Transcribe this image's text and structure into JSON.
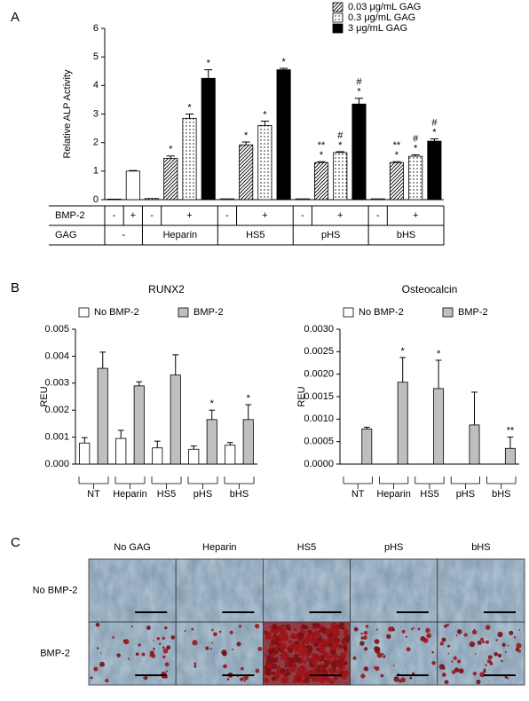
{
  "chart_data": [
    {
      "type": "bar",
      "panel": "A",
      "ylabel": "Relative ALP Activity",
      "ylim": [
        0,
        6
      ],
      "yticks": [
        0,
        1,
        2,
        3,
        4,
        5,
        6
      ],
      "legend": "upper right",
      "row_labels": [
        "BMP-2",
        "GAG"
      ],
      "categories": [
        "-",
        "+",
        "-",
        "+",
        "-",
        "+",
        "-",
        "+",
        "-",
        "+"
      ],
      "groups": [
        "-",
        "Heparin",
        "HS5",
        "pHS",
        "bHS"
      ],
      "series": [
        {
          "color": "#ffffff",
          "values": [
            0.02,
            1.0,
            null,
            null,
            null,
            null,
            null,
            null,
            null,
            null
          ],
          "errors": [
            null,
            0.02,
            null,
            null,
            null,
            null,
            null,
            null,
            null,
            null
          ]
        },
        {
          "name": "0.03 μg/mL GAG",
          "pattern": "hatch",
          "color": "#000000",
          "values": [
            null,
            null,
            0.04,
            1.45,
            0.03,
            1.92,
            0.03,
            1.3,
            0.03,
            1.3
          ],
          "errors": [
            null,
            null,
            null,
            0.08,
            null,
            0.1,
            null,
            0.03,
            null,
            0.03
          ],
          "significance": [
            null,
            null,
            null,
            [
              "*"
            ],
            null,
            [
              "*"
            ],
            null,
            [
              "**",
              "*"
            ],
            null,
            [
              "**",
              "*"
            ]
          ]
        },
        {
          "name": "0.3 μg/mL GAG",
          "pattern": "dots",
          "color": "#000000",
          "values": [
            null,
            null,
            null,
            2.85,
            null,
            2.6,
            null,
            1.65,
            null,
            1.52
          ],
          "errors": [
            null,
            null,
            null,
            0.15,
            null,
            0.15,
            null,
            0.03,
            null,
            0.05
          ],
          "significance": [
            null,
            null,
            null,
            [
              "*"
            ],
            null,
            [
              "*"
            ],
            null,
            [
              "#",
              "*"
            ],
            null,
            [
              "#",
              "*"
            ]
          ]
        },
        {
          "name": "3 μg/mL GAG",
          "color": "#000000",
          "values": [
            null,
            null,
            null,
            4.25,
            null,
            4.55,
            null,
            3.35,
            null,
            2.05
          ],
          "errors": [
            null,
            null,
            null,
            0.3,
            null,
            0.05,
            null,
            0.2,
            null,
            0.08
          ],
          "significance": [
            null,
            null,
            null,
            [
              "*"
            ],
            null,
            [
              "*"
            ],
            null,
            [
              "#",
              "*"
            ],
            null,
            [
              "#",
              "*"
            ]
          ]
        }
      ]
    },
    {
      "type": "bar",
      "panel": "B",
      "title": "RUNX2",
      "ylabel": "REU",
      "ylim": [
        0,
        0.005
      ],
      "yticks": [
        {
          "value": 0,
          "label": "0.000"
        },
        0.001,
        0.002,
        0.003,
        0.004,
        0.005
      ],
      "legend": "upper left",
      "categories": [
        "NT",
        "Heparin",
        "HS5",
        "pHS",
        "bHS"
      ],
      "series": [
        {
          "name": "No BMP-2",
          "color": "#ffffff",
          "values": [
            0.00078,
            0.00095,
            0.0006,
            0.00055,
            0.0007
          ],
          "errors": [
            0.0002,
            0.0003,
            0.00025,
            0.00012,
            0.0001
          ]
        },
        {
          "name": "BMP-2",
          "color": "#bfbfbf",
          "values": [
            0.00355,
            0.0029,
            0.0033,
            0.00165,
            0.00165
          ],
          "errors": [
            0.0006,
            0.00015,
            0.00075,
            0.00035,
            0.00055
          ],
          "significance": [
            null,
            null,
            null,
            [
              "*"
            ],
            [
              "*"
            ]
          ]
        }
      ]
    },
    {
      "type": "bar",
      "title": "Osteocalcin",
      "ylabel": "REU",
      "ylim": [
        0,
        0.003
      ],
      "yticks": [
        {
          "value": 0,
          "label": "0.0000"
        },
        0.0005,
        {
          "value": 0.001,
          "label": "0.0010"
        },
        0.0015,
        {
          "value": 0.002,
          "label": "0.0020"
        },
        0.0025,
        {
          "value": 0.003,
          "label": "0.0030"
        }
      ],
      "legend": "upper left",
      "categories": [
        "NT",
        "Heparin",
        "HS5",
        "pHS",
        "bHS"
      ],
      "series": [
        {
          "name": "No BMP-2",
          "color": "#ffffff",
          "values": [
            0,
            0,
            0,
            0,
            0
          ]
        },
        {
          "name": "BMP-2",
          "color": "#bfbfbf",
          "values": [
            0.00078,
            0.00182,
            0.00168,
            0.00087,
            0.00035
          ],
          "errors": [
            4e-05,
            0.00055,
            0.00063,
            0.00073,
            0.00025
          ],
          "significance": [
            null,
            [
              "*"
            ],
            [
              "*"
            ],
            null,
            [
              "**"
            ]
          ]
        }
      ]
    }
  ],
  "micrographs": {
    "panel": "C",
    "columns": [
      "No GAG",
      "Heparin",
      "HS5",
      "pHS",
      "bHS"
    ],
    "rows": [
      "No BMP-2",
      "BMP-2"
    ]
  }
}
